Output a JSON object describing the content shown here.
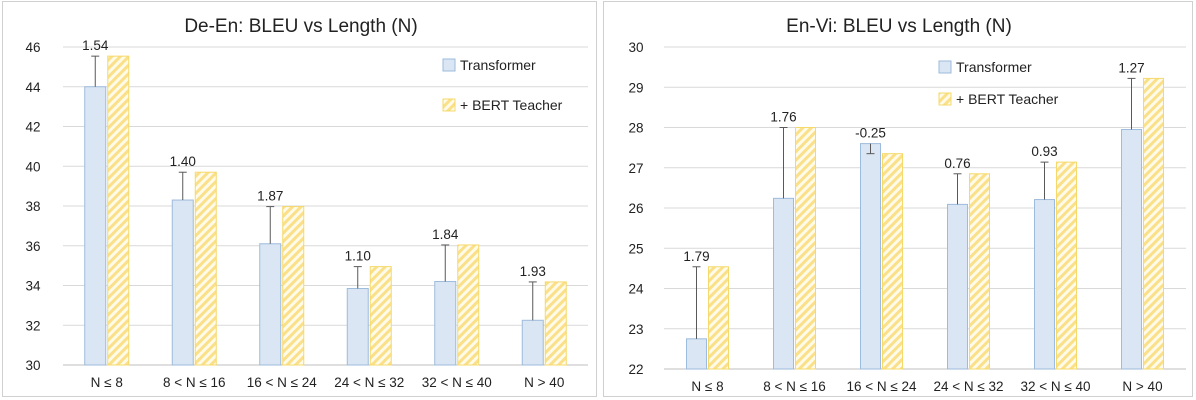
{
  "chart_data": [
    {
      "type": "bar",
      "title": "De-En: BLEU vs Length (N)",
      "categories": [
        "N ≤ 8",
        "8 < N ≤ 16",
        "16 < N ≤ 24",
        "24 < N ≤ 32",
        "32 < N ≤ 40",
        "N > 40"
      ],
      "series": [
        {
          "name": "Transformer",
          "values": [
            44.0,
            38.3,
            36.1,
            33.85,
            34.2,
            32.25
          ],
          "color": "#dae6f3"
        },
        {
          "name": "+ BERT Teacher",
          "values": [
            45.54,
            39.7,
            37.97,
            34.95,
            36.04,
            34.18
          ],
          "color": "#fbe08a"
        }
      ],
      "error_bars": [
        1.54,
        1.4,
        1.87,
        1.1,
        1.84,
        1.93
      ],
      "bar_labels": [
        "1.54",
        "1.40",
        "1.87",
        "1.10",
        "1.84",
        "1.93"
      ],
      "ylim": [
        30,
        46
      ],
      "yticks": [
        30,
        32,
        34,
        36,
        38,
        40,
        42,
        44,
        46
      ],
      "legend_position": "top-right",
      "grid": true
    },
    {
      "type": "bar",
      "title": "En-Vi: BLEU vs Length (N)",
      "categories": [
        "N ≤ 8",
        "8 < N ≤ 16",
        "16 < N ≤ 24",
        "24 < N ≤ 32",
        "32 < N ≤ 40",
        "N > 40"
      ],
      "series": [
        {
          "name": "Transformer",
          "values": [
            22.75,
            26.24,
            27.6,
            26.09,
            26.21,
            27.95
          ],
          "color": "#dae6f3"
        },
        {
          "name": "+ BERT Teacher",
          "values": [
            24.54,
            28.0,
            27.35,
            26.85,
            27.14,
            29.22
          ],
          "color": "#fbe08a"
        }
      ],
      "error_bars": [
        1.79,
        1.76,
        -0.25,
        0.76,
        0.93,
        1.27
      ],
      "bar_labels": [
        "1.79",
        "1.76",
        "-0.25",
        "0.76",
        "0.93",
        "1.27"
      ],
      "ylim": [
        22,
        30
      ],
      "yticks": [
        22,
        23,
        24,
        25,
        26,
        27,
        28,
        29,
        30
      ],
      "legend_position": "top-right",
      "grid": true
    }
  ]
}
